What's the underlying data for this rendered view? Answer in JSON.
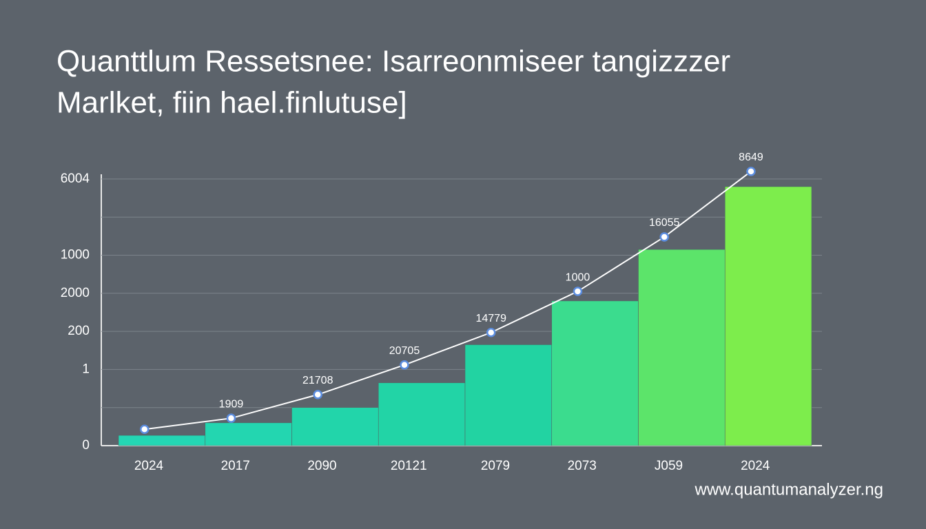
{
  "chart_data": {
    "type": "bar-line",
    "title": "Quanttlum Ressetsnee: Isarreonmiseer tangizzzer",
    "subtitle": "Marlket, fiin hael.finlutuse]",
    "source": "www.quantumanalyzer.ng",
    "categories": [
      "2024",
      "2017",
      "2090",
      "20121",
      "2079",
      "2073",
      "J059",
      "2024"
    ],
    "ylim": [
      0,
      7.5
    ],
    "yticks": [
      {
        "value": 0,
        "label": "0"
      },
      {
        "value": 1,
        "label": null
      },
      {
        "value": 2,
        "label": "1"
      },
      {
        "value": 3,
        "label": "200"
      },
      {
        "value": 4,
        "label": "2000"
      },
      {
        "value": 5,
        "label": "1000"
      },
      {
        "value": 6,
        "label": null
      },
      {
        "value": 7,
        "label": "6004"
      }
    ],
    "grid": true,
    "series": [
      {
        "type": "bar",
        "colors": [
          "#24d6b4",
          "#23d6b0",
          "#22d5aa",
          "#22d4a6",
          "#22d3a2",
          "#3bdc8e",
          "#5ce46a",
          "#7ded4c"
        ],
        "values": [
          0.27,
          0.6,
          1.0,
          1.65,
          2.65,
          3.8,
          5.15,
          6.8
        ]
      },
      {
        "type": "line",
        "color": "#ffffff",
        "values": [
          0.43,
          0.72,
          1.34,
          2.12,
          2.97,
          4.05,
          5.48,
          7.2
        ],
        "point_labels": [
          null,
          "1909",
          "21708",
          "20705",
          "14779",
          "1000",
          "16055",
          "8649"
        ]
      }
    ]
  }
}
